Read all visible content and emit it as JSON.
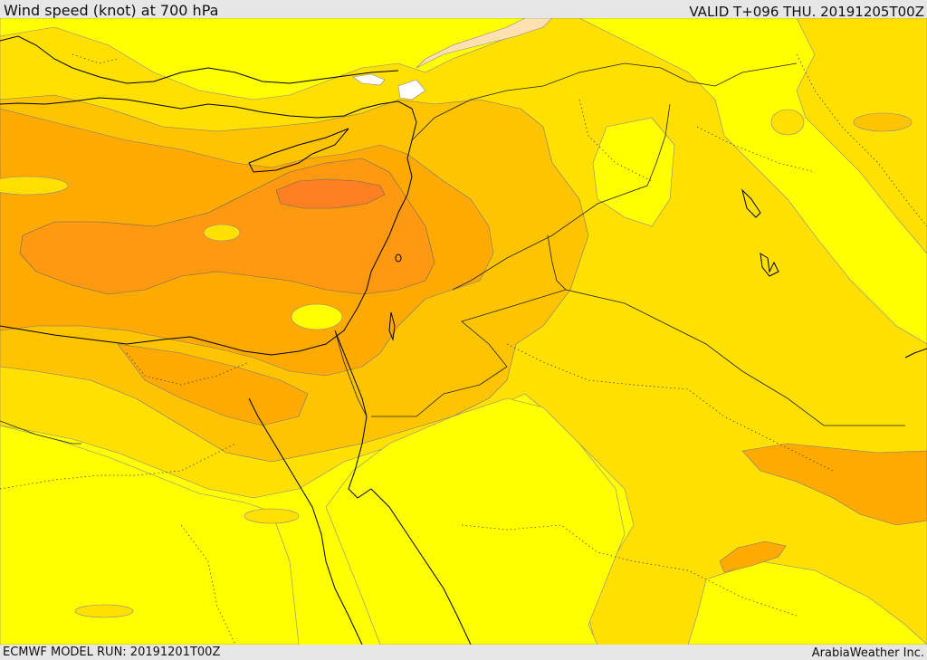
{
  "header": {
    "title": "Wind speed (knot) at 700 hPa",
    "valid_time": "VALID T+096 THU. 20191205T00Z"
  },
  "footer": {
    "model_run": "ECMWF MODEL RUN: 20191201T00Z",
    "credit": "ArabiaWeather Inc."
  },
  "map": {
    "region": "Eastern Mediterranean / Levant / Arabian Peninsula",
    "field": "wind speed at 700 hPa",
    "colors": {
      "band_lightest": "#ffffff",
      "band_light": "#ffe0b0",
      "band_1": "#ffff00",
      "band_2": "#ffe000",
      "band_3": "#ffc400",
      "band_4": "#ffaa00",
      "band_5": "#ff9a10",
      "band_6": "#ff8020",
      "coastline": "#000000",
      "border": "#222222"
    }
  }
}
